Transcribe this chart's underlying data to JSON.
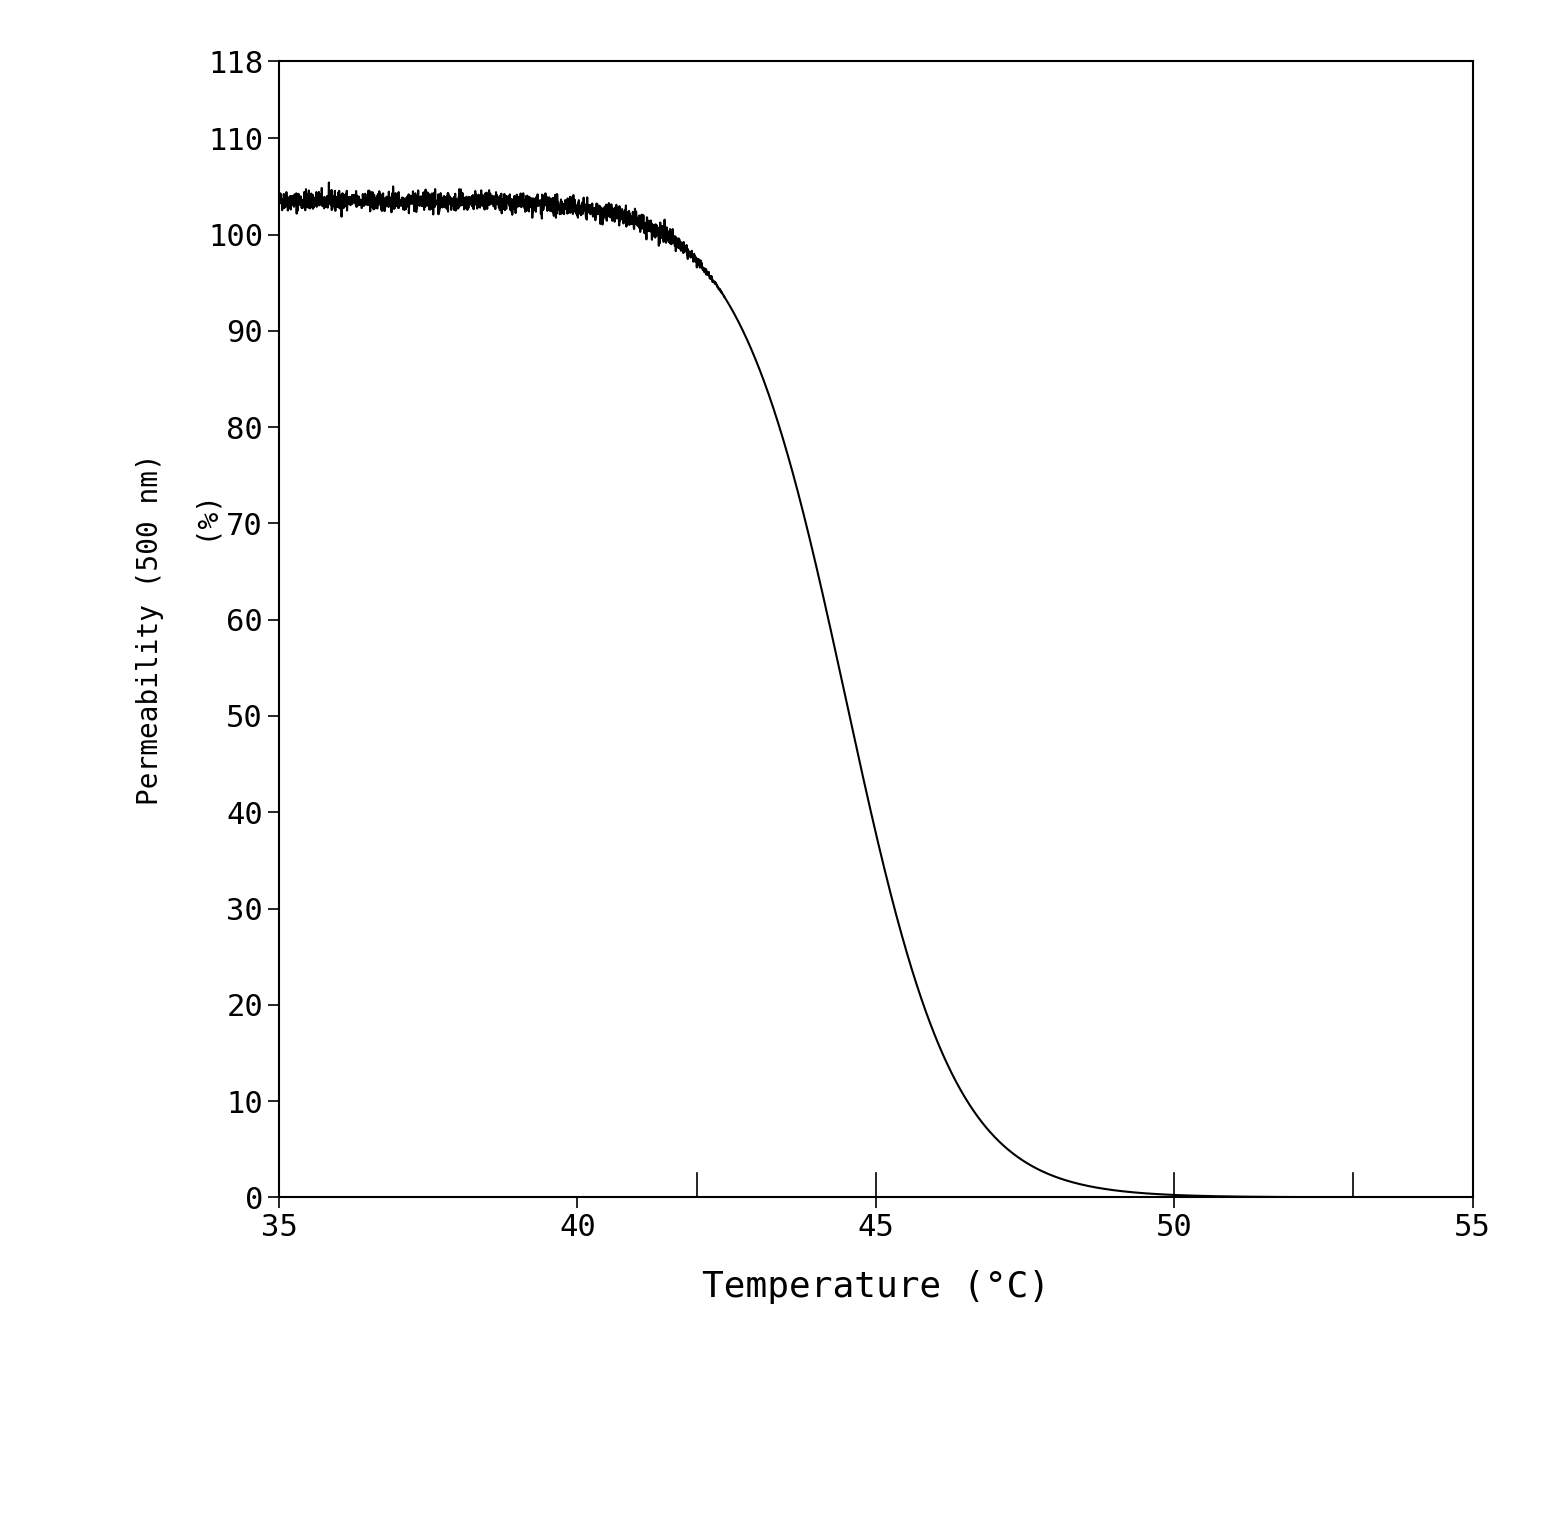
{
  "xlabel": "Temperature (°C)",
  "ylabel_top": "Permeability (500 nm)",
  "ylabel_bottom": "(%)",
  "xlim": [
    35,
    55
  ],
  "ylim": [
    0,
    118
  ],
  "xticks": [
    35,
    40,
    45,
    50,
    55
  ],
  "yticks": [
    0,
    10,
    20,
    30,
    40,
    50,
    60,
    70,
    80,
    90,
    100,
    110,
    118
  ],
  "line_color": "#000000",
  "bg_color": "#ffffff",
  "sigmoid_midpoint": 44.5,
  "sigmoid_steepness": 1.1,
  "plateau_value": 103.5,
  "noise_amplitude": 0.5,
  "xlabel_fontsize": 26,
  "ylabel_fontsize": 20,
  "tick_fontsize": 22,
  "minor_xticks": [
    42,
    45,
    50,
    53
  ],
  "figsize": [
    15.5,
    15.35
  ],
  "dpi": 100
}
